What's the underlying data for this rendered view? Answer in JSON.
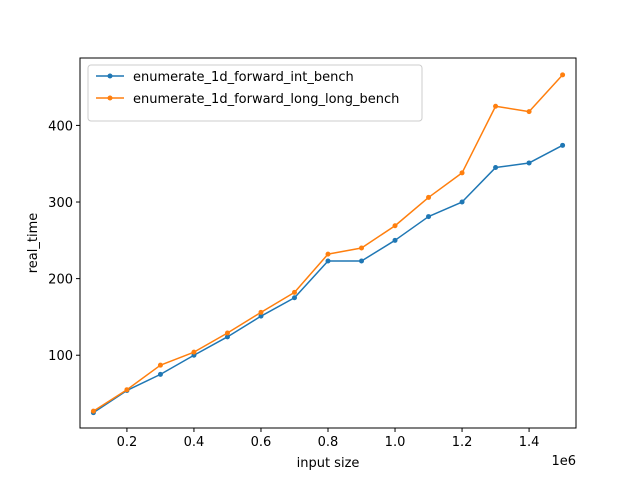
{
  "chart_data": {
    "type": "line",
    "title": "",
    "xlabel": "input size",
    "ylabel": "real_time",
    "x_offset_label": "1e6",
    "x_scale": 1000000,
    "xlim": [
      0.06,
      1.54
    ],
    "ylim": [
      5,
      488
    ],
    "x_ticks": [
      0.2,
      0.4,
      0.6,
      0.8,
      1.0,
      1.2,
      1.4
    ],
    "x_tick_labels": [
      "0.2",
      "0.4",
      "0.6",
      "0.8",
      "1.0",
      "1.2",
      "1.4"
    ],
    "y_ticks": [
      100,
      200,
      300,
      400
    ],
    "y_tick_labels": [
      "100",
      "200",
      "300",
      "400"
    ],
    "grid": false,
    "legend_position": "top-left",
    "x": [
      100000,
      200000,
      300000,
      400000,
      500000,
      600000,
      700000,
      800000,
      900000,
      1000000,
      1100000,
      1200000,
      1300000,
      1400000,
      1500000
    ],
    "series": [
      {
        "name": "enumerate_1d_forward_int_bench",
        "color": "#1f77b4",
        "values": [
          25,
          54,
          75,
          100,
          124,
          151,
          175,
          223,
          223,
          250,
          281,
          300,
          345,
          351,
          374
        ]
      },
      {
        "name": "enumerate_1d_forward_long_long_bench",
        "color": "#ff7f0e",
        "values": [
          27,
          55,
          87,
          104,
          129,
          156,
          182,
          232,
          240,
          269,
          306,
          338,
          425,
          418,
          466
        ]
      }
    ]
  }
}
